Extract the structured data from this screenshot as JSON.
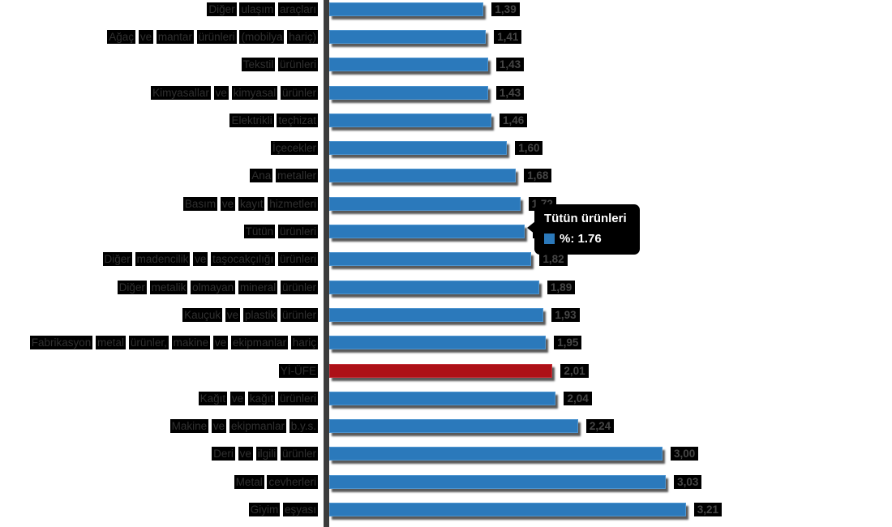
{
  "chart_data": {
    "type": "bar",
    "orientation": "horizontal",
    "title": "",
    "xlabel": "",
    "ylabel": "",
    "xlim": [
      0,
      3.4
    ],
    "grid": false,
    "legend": false,
    "categories": [
      "Diğer ulaşım araçları",
      "Ağaç ve mantar ürünleri (mobilya hariç)",
      "Tekstil ürünleri",
      "Kimyasallar ve kimyasal ürünler",
      "Elektrikli teçhizat",
      "İçecekler",
      "Ana metaller",
      "Basım ve kayıt hizmetleri",
      "Tütün ürünleri",
      "Diğer madencilik ve taşocakçılığı ürünleri",
      "Diğer metalik olmayan mineral ürünler",
      "Kauçuk ve plastik ürünler",
      "Fabrikasyon metal ürünler, makine ve ekipmanlar hariç",
      "Yİ-ÜFE",
      "Kağıt ve kağıt ürünleri",
      "Makine ve ekipmanlar b.y.s.",
      "Deri ve ilgili ürünler",
      "Metal cevherleri",
      "Giyim eşyası"
    ],
    "values": [
      1.39,
      1.41,
      1.43,
      1.43,
      1.46,
      1.6,
      1.68,
      1.72,
      1.76,
      1.82,
      1.89,
      1.93,
      1.95,
      2.01,
      2.04,
      2.24,
      3.0,
      3.03,
      3.21
    ],
    "value_labels": [
      "1,39",
      "1,41",
      "1,43",
      "1,43",
      "1,46",
      "1,60",
      "1,68",
      "1,72",
      "1,76",
      "1,82",
      "1,89",
      "1,93",
      "1,95",
      "2,01",
      "2,04",
      "2,24",
      "3,00",
      "3,03",
      "3,21"
    ],
    "highlight_index": 13,
    "colors": {
      "bar": "#2b79bb",
      "highlight_bar": "#ad1117",
      "bar_shadow": "#3c3c3c",
      "axis_line": "#3c3c3c",
      "tooltip_bg": "#000000",
      "tooltip_text": "#ffffff"
    }
  },
  "tooltip": {
    "title": "Tütün ürünleri",
    "value_text": "%: 1.76"
  }
}
